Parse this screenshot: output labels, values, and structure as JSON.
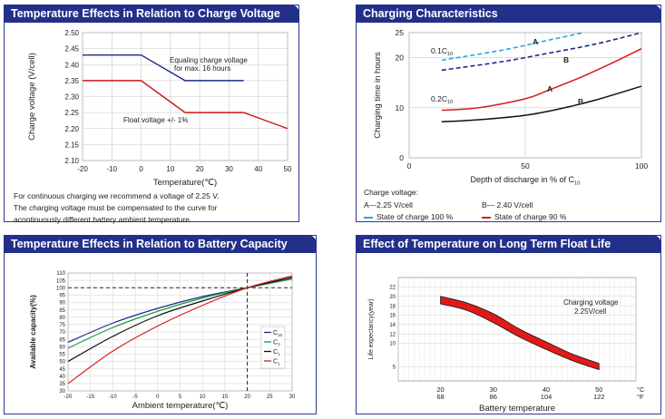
{
  "panels": {
    "p1": {
      "title": "Temperature Effects in Relation to Charge Voltage"
    },
    "p2": {
      "title": "Charging Characteristics"
    },
    "p3": {
      "title": "Temperature Effects in Relation to Battery Capacity"
    },
    "p4": {
      "title": "Effect of Temperature on Long Term Float Life"
    }
  },
  "chart_data": [
    {
      "id": "charge-voltage",
      "type": "line",
      "title": "Temperature Effects in Relation to Charge Voltage",
      "xlabel": "Temperature(℃)",
      "ylabel": "Charge voltage (V/cell)",
      "xlim": [
        -20,
        50
      ],
      "ylim": [
        2.1,
        2.5
      ],
      "xticks": [
        "-20",
        "-10",
        "0",
        "10",
        "20",
        "30",
        "40",
        "50"
      ],
      "yticks": [
        "2.10",
        "2.15",
        "2.20",
        "2.25",
        "2.30",
        "2.35",
        "2.40",
        "2.45",
        "2.50"
      ],
      "series": [
        {
          "label": "Equaling charge voltage for max. 16 hours",
          "label_lines": [
            "Equaling charge voltage",
            "for max. 16 hours"
          ],
          "color": "#1c2a8a",
          "x": [
            -20,
            0,
            15,
            35
          ],
          "y": [
            2.43,
            2.43,
            2.35,
            2.35
          ]
        },
        {
          "label": "Float voltage +/- 1%",
          "color": "#c81818",
          "x": [
            -20,
            0,
            15,
            35,
            50
          ],
          "y": [
            2.35,
            2.35,
            2.25,
            2.25,
            2.2
          ]
        }
      ],
      "notes": [
        "For continuous charging we recommend a voltage of 2.25 V.",
        "The charging voltage must be compensated to the curve for",
        "acontinuously different battery ambient temperature."
      ]
    },
    {
      "id": "charging-characteristics",
      "type": "line",
      "title": "Charging Characteristics",
      "xlabel": "Depth of discharge in % of C",
      "xlabel_sub": "10",
      "ylabel": "Charging time in hours",
      "xlim": [
        0,
        100
      ],
      "ylim": [
        0,
        25
      ],
      "xticks": [
        "0",
        "50",
        "100"
      ],
      "yticks": [
        "0",
        "10",
        "20",
        "25"
      ],
      "series": [
        {
          "group": "0.1C",
          "group_sub": "10",
          "label": "A",
          "color": "#29a6e0",
          "dash": true,
          "x": [
            14,
            40,
            60,
            80
          ],
          "y": [
            19.5,
            21.5,
            23.5,
            25.5
          ]
        },
        {
          "group": "0.1C",
          "group_sub": "10",
          "label": "B",
          "color": "#1c2a8a",
          "dash": true,
          "x": [
            14,
            40,
            60,
            80,
            100
          ],
          "y": [
            17.5,
            19.2,
            20.9,
            22.7,
            25
          ]
        },
        {
          "group": "0.2C",
          "group_sub": "10",
          "label": "A",
          "color": "#d61c1c",
          "dash": false,
          "x": [
            14,
            30,
            50,
            60,
            75,
            90,
            100
          ],
          "y": [
            9.5,
            10.0,
            11.8,
            13.5,
            16.3,
            19.5,
            21.8
          ]
        },
        {
          "group": "0.2C",
          "group_sub": "10",
          "label": "B",
          "color": "#111111",
          "dash": false,
          "x": [
            14,
            30,
            50,
            65,
            80,
            100
          ],
          "y": [
            7.2,
            7.6,
            8.5,
            9.8,
            11.5,
            14.3
          ]
        }
      ],
      "legend": {
        "title": "Charge voltage:",
        "a_label": "A—2.25 V/cell",
        "b_label": "B— 2.40 V/cell",
        "dashed_label": "State of charge 100 %",
        "solid_label": "State of charge 90 %"
      }
    },
    {
      "id": "battery-capacity",
      "type": "line",
      "title": "Temperature Effects in Relation to Battery Capacity",
      "xlabel": "Ambient temperature(℃)",
      "ylabel": "Available capacity(%)",
      "xlim": [
        -20,
        30
      ],
      "ylim": [
        30,
        110
      ],
      "xticks": [
        "-20",
        "-15",
        "-10",
        "-5",
        "0",
        "5",
        "10",
        "15",
        "20",
        "25",
        "30"
      ],
      "yticks": [
        "30",
        "35",
        "40",
        "45",
        "50",
        "55",
        "60",
        "65",
        "70",
        "75",
        "80",
        "85",
        "90",
        "95",
        "100",
        "105",
        "110"
      ],
      "reference": {
        "x": 20,
        "y": 100
      },
      "series": [
        {
          "name": "C",
          "sub": "10",
          "color": "#1c2a8a",
          "x": [
            -20,
            -10,
            0,
            10,
            20,
            30
          ],
          "y": [
            63,
            76,
            86,
            94,
            100,
            106
          ]
        },
        {
          "name": "C",
          "sub": "3",
          "color": "#1f9a3a",
          "x": [
            -20,
            -10,
            0,
            10,
            20,
            30
          ],
          "y": [
            59,
            73,
            84,
            93,
            100,
            106
          ]
        },
        {
          "name": "C",
          "sub": "1",
          "color": "#111111",
          "x": [
            -20,
            -10,
            0,
            10,
            20,
            30
          ],
          "y": [
            50,
            67,
            81,
            91,
            100,
            107
          ]
        },
        {
          "name": "C",
          "sub": "1",
          "color": "#d61c1c",
          "x": [
            -20,
            -10,
            0,
            10,
            20,
            30
          ],
          "y": [
            35,
            57,
            74,
            88,
            100,
            108
          ]
        }
      ]
    },
    {
      "id": "float-life",
      "type": "area",
      "title": "Effect of Temperature on Long Term Float Life",
      "xlabel": "Battery temperature",
      "ylabel": "Life expectancy(year)",
      "xlim": [
        12,
        57
      ],
      "ylim": [
        2,
        24
      ],
      "xticks": [
        {
          "c": "20",
          "f": "68",
          "v": 20
        },
        {
          "c": "30",
          "f": "86",
          "v": 30
        },
        {
          "c": "40",
          "f": "104",
          "v": 40
        },
        {
          "c": "50",
          "f": "122",
          "v": 50
        }
      ],
      "unit_c": "°C",
      "unit_f": "°F",
      "yticks": [
        "5",
        "10",
        "12",
        "14",
        "16",
        "18",
        "20",
        "22"
      ],
      "band_upper": {
        "x": [
          20,
          25,
          30,
          35,
          40,
          45,
          50
        ],
        "y": [
          20,
          18.6,
          16.3,
          13.0,
          10.3,
          7.7,
          5.7
        ]
      },
      "band_lower": {
        "x": [
          20,
          25,
          30,
          35,
          40,
          45,
          50
        ],
        "y": [
          18.4,
          17.0,
          14.4,
          11.3,
          8.7,
          6.3,
          4.4
        ]
      },
      "band_color": "#e01a1a",
      "annotation": [
        "Charging voltage",
        "2.25V/cell"
      ]
    }
  ]
}
